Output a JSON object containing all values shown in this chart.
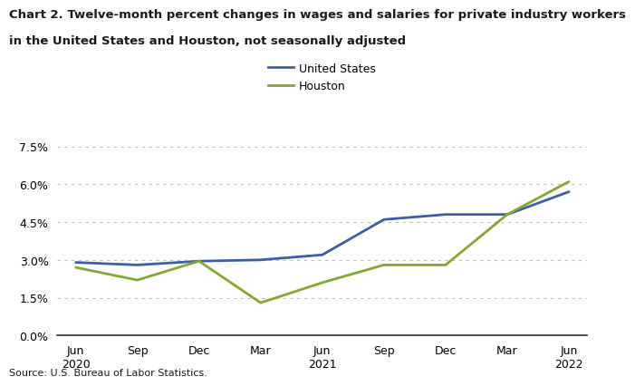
{
  "title_line1": "Chart 2. Twelve-month percent changes in wages and salaries for private industry workers",
  "title_line2": "in the United States and Houston, not seasonally adjusted",
  "x_labels": [
    "Jun\n2020",
    "Sep",
    "Dec",
    "Mar",
    "Jun\n2021",
    "Sep",
    "Dec",
    "Mar",
    "Jun\n2022"
  ],
  "x_positions": [
    0,
    1,
    2,
    3,
    4,
    5,
    6,
    7,
    8
  ],
  "us_values": [
    2.9,
    2.8,
    2.95,
    3.0,
    3.2,
    4.6,
    4.8,
    4.8,
    5.7
  ],
  "houston_values": [
    2.7,
    2.2,
    2.95,
    1.3,
    2.1,
    2.8,
    2.8,
    4.8,
    6.1
  ],
  "us_color": "#3a5fa8",
  "houston_color": "#82a832",
  "us_label": "United States",
  "houston_label": "Houston",
  "yticks": [
    0.0,
    1.5,
    3.0,
    4.5,
    6.0,
    7.5
  ],
  "ylim": [
    0.0,
    7.75
  ],
  "source": "Source: U.S. Bureau of Labor Statistics.",
  "background_color": "#ffffff",
  "grid_color": "#c0c0c0"
}
